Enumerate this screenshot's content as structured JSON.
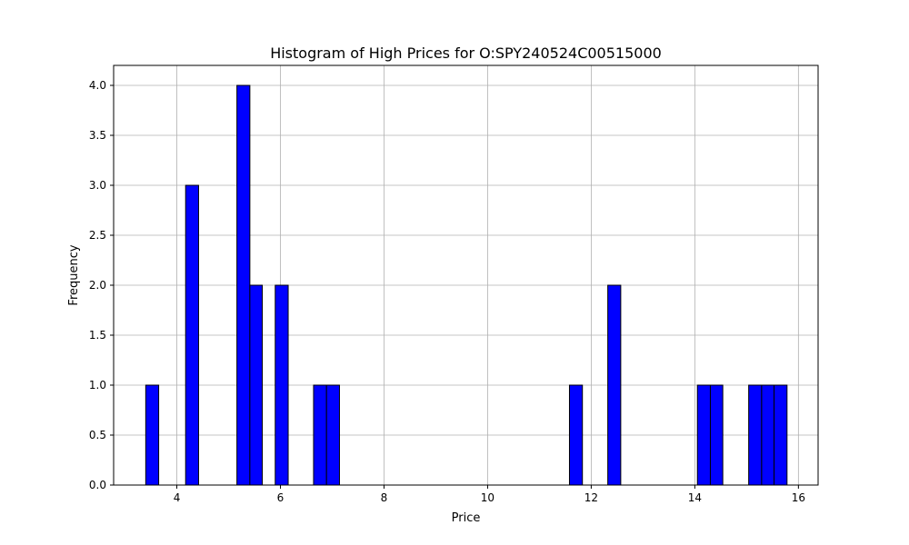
{
  "chart_data": {
    "type": "bar",
    "title": "Histogram of High Prices for O:SPY240524C00515000",
    "xlabel": "Price",
    "ylabel": "Frequency",
    "xlim": [
      2.78,
      16.38
    ],
    "ylim": [
      0,
      4.2
    ],
    "xticks": [
      4,
      6,
      8,
      10,
      12,
      14,
      16
    ],
    "yticks": [
      0.0,
      0.5,
      1.0,
      1.5,
      2.0,
      2.5,
      3.0,
      3.5,
      4.0
    ],
    "grid": true,
    "bar_color": "#0000ff",
    "edge_color": "#000000",
    "bins": [
      {
        "x0": 3.4,
        "x1": 3.65,
        "count": 1
      },
      {
        "x0": 4.17,
        "x1": 4.42,
        "count": 3
      },
      {
        "x0": 5.16,
        "x1": 5.41,
        "count": 4
      },
      {
        "x0": 5.41,
        "x1": 5.65,
        "count": 2
      },
      {
        "x0": 5.9,
        "x1": 6.15,
        "count": 2
      },
      {
        "x0": 6.64,
        "x1": 6.89,
        "count": 1
      },
      {
        "x0": 6.89,
        "x1": 7.14,
        "count": 1
      },
      {
        "x0": 11.58,
        "x1": 11.83,
        "count": 1
      },
      {
        "x0": 12.32,
        "x1": 12.57,
        "count": 2
      },
      {
        "x0": 14.05,
        "x1": 14.3,
        "count": 1
      },
      {
        "x0": 14.3,
        "x1": 14.54,
        "count": 1
      },
      {
        "x0": 15.04,
        "x1": 15.29,
        "count": 1
      },
      {
        "x0": 15.29,
        "x1": 15.53,
        "count": 1
      },
      {
        "x0": 15.53,
        "x1": 15.78,
        "count": 1
      }
    ]
  }
}
